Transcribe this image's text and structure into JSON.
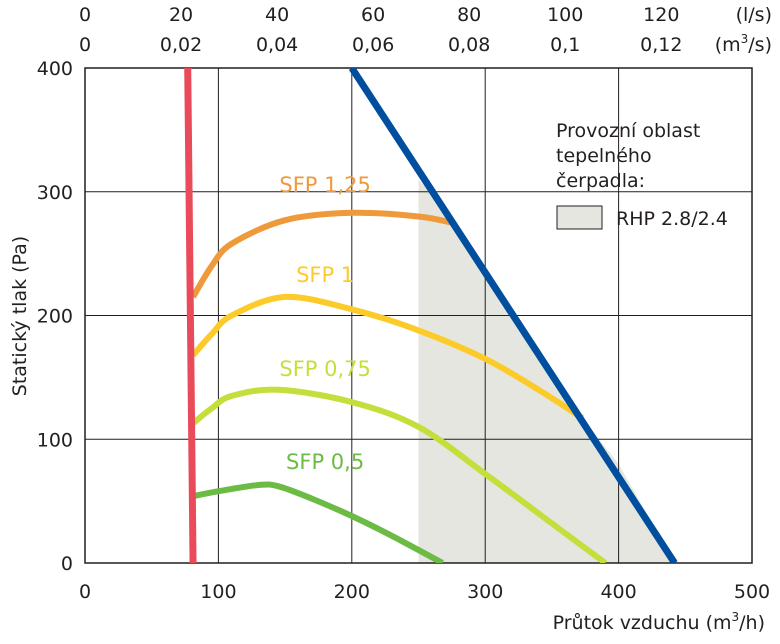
{
  "chart_data": {
    "type": "line",
    "ylabel": "Statický tlak (Pa)",
    "xlabel_main": "Průtok vzduchu (m",
    "xlabel_sup": "3",
    "xlabel_end": "/h)",
    "xlim": [
      0,
      500
    ],
    "ylim": [
      0,
      400
    ],
    "grid": true,
    "x_ticks": [
      0,
      100,
      200,
      300,
      400,
      500
    ],
    "y_ticks": [
      0,
      100,
      200,
      300,
      400
    ],
    "top_axis_ls": {
      "unit": "(l/s)",
      "ticks": [
        {
          "label": "0",
          "x": 0
        },
        {
          "label": "20",
          "x": 72
        },
        {
          "label": "40",
          "x": 144
        },
        {
          "label": "60",
          "x": 216
        },
        {
          "label": "80",
          "x": 288
        },
        {
          "label": "100",
          "x": 360
        },
        {
          "label": "120",
          "x": 432
        }
      ]
    },
    "top_axis_m3s": {
      "unit_main": "(m",
      "unit_sup": "3",
      "unit_end": "/s)",
      "ticks": [
        {
          "label": "0",
          "x": 0
        },
        {
          "label": "0,02",
          "x": 72
        },
        {
          "label": "0,04",
          "x": 144
        },
        {
          "label": "0,06",
          "x": 216
        },
        {
          "label": "0,08",
          "x": 288
        },
        {
          "label": "0,1",
          "x": 360
        },
        {
          "label": "0,12",
          "x": 432
        }
      ]
    },
    "legend": {
      "placement": "top-right",
      "title": [
        "Provozní oblast",
        "tepelného",
        "čerpadla:"
      ],
      "entry": "RHP 2.8/2.4",
      "fill": "#e4e6df"
    },
    "operating_region": {
      "name": "RHP 2.8/2.4",
      "points": [
        [
          250,
          0
        ],
        [
          250,
          310
        ],
        [
          258,
          300
        ],
        [
          275,
          275
        ],
        [
          373,
          117
        ],
        [
          400,
          80
        ],
        [
          442,
          0
        ]
      ]
    },
    "series": [
      {
        "name": "SFP 1,25",
        "color": "#ee9a3a",
        "label_pos": [
          180,
          300
        ],
        "points": [
          [
            81,
            215
          ],
          [
            95,
            240
          ],
          [
            110,
            258
          ],
          [
            150,
            277
          ],
          [
            200,
            283
          ],
          [
            250,
            280
          ],
          [
            275,
            275
          ]
        ]
      },
      {
        "name": "SFP 1",
        "color": "#fccb2a",
        "label_pos": [
          180,
          227
        ],
        "points": [
          [
            81,
            168
          ],
          [
            95,
            185
          ],
          [
            110,
            200
          ],
          [
            150,
            215
          ],
          [
            200,
            205
          ],
          [
            250,
            188
          ],
          [
            300,
            165
          ],
          [
            340,
            140
          ],
          [
            373,
            117
          ]
        ]
      },
      {
        "name": "SFP 0,75",
        "color": "#c6de3c",
        "label_pos": [
          180,
          151
        ],
        "points": [
          [
            81,
            113
          ],
          [
            95,
            125
          ],
          [
            110,
            135
          ],
          [
            145,
            140
          ],
          [
            200,
            130
          ],
          [
            250,
            110
          ],
          [
            300,
            72
          ],
          [
            350,
            32
          ],
          [
            390,
            0
          ]
        ]
      },
      {
        "name": "SFP 0,5",
        "color": "#6cbb45",
        "label_pos": [
          180,
          76
        ],
        "points": [
          [
            81,
            54
          ],
          [
            100,
            58
          ],
          [
            130,
            63
          ],
          [
            145,
            62
          ],
          [
            170,
            52
          ],
          [
            200,
            38
          ],
          [
            230,
            22
          ],
          [
            268,
            0
          ]
        ]
      }
    ],
    "limit_lines": [
      {
        "color": "#e94b5a",
        "points": [
          [
            77,
            400
          ],
          [
            81,
            0
          ]
        ]
      },
      {
        "color": "#004f9f",
        "points": [
          [
            200,
            400
          ],
          [
            442,
            0
          ]
        ]
      }
    ]
  }
}
